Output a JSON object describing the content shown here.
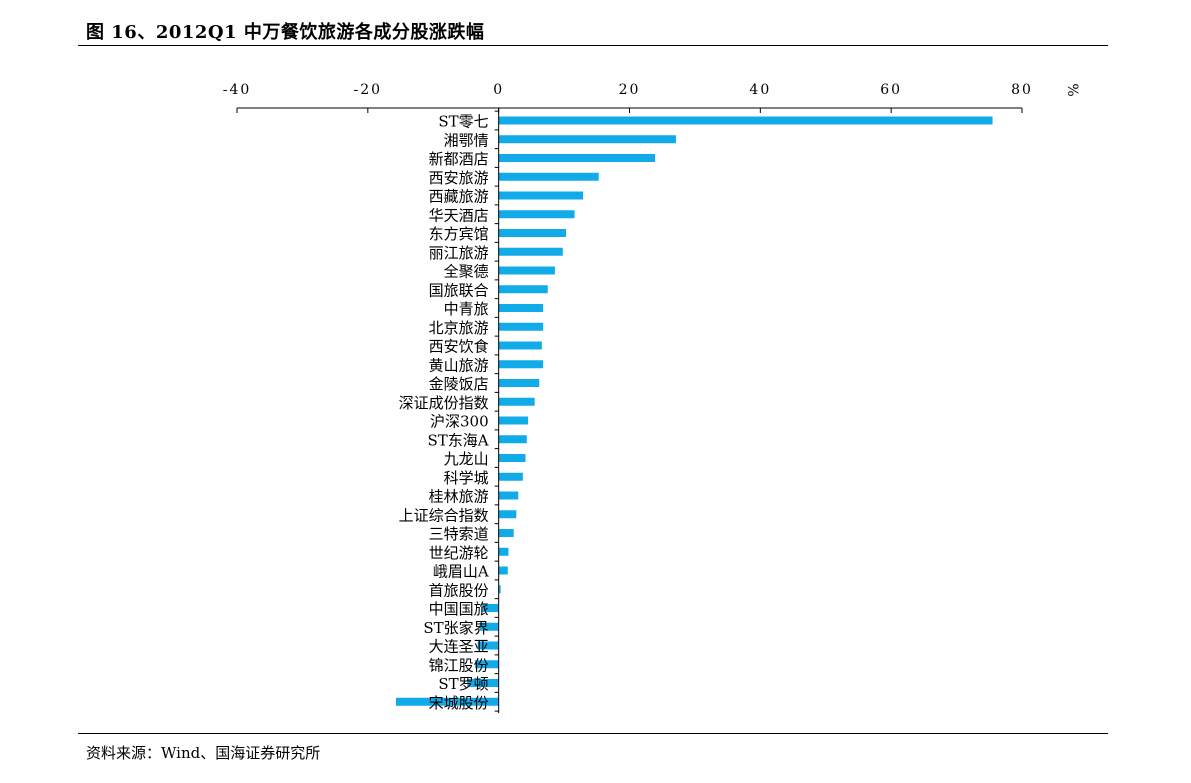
{
  "title": "图 16、2012Q1 中万餐饮旅游各成分股涨跌幅",
  "source": "资料来源：Wind、国海证券研究所",
  "chart_data": {
    "type": "bar",
    "orientation": "horizontal",
    "xaxis_position": "top",
    "unit": "%",
    "xlim": [
      -40,
      80
    ],
    "xticks": [
      "-40",
      "-20",
      "0",
      "20",
      "40",
      "60",
      "80"
    ],
    "bar_color": "#12ABE9",
    "categories": [
      "ST零七",
      "湘鄂情",
      "新都酒店",
      "西安旅游",
      "西藏旅游",
      "华天酒店",
      "东方宾馆",
      "丽江旅游",
      "全聚德",
      "国旅联合",
      "中青旅",
      "北京旅游",
      "西安饮食",
      "黄山旅游",
      "金陵饭店",
      "深证成份指数",
      "沪深300",
      "ST东海A",
      "九龙山",
      "科学城",
      "桂林旅游",
      "上证综合指数",
      "三特索道",
      "世纪游轮",
      "峨眉山A",
      "首旅股份",
      "中国国旅",
      "ST张家界",
      "大连圣亚",
      "锦江股份",
      "ST罗顿",
      "宋城股份"
    ],
    "values": [
      75.5,
      27.1,
      23.9,
      15.3,
      12.9,
      11.6,
      10.3,
      9.8,
      8.6,
      7.5,
      6.8,
      6.8,
      6.6,
      6.8,
      6.2,
      5.5,
      4.5,
      4.3,
      4.1,
      3.7,
      3.0,
      2.7,
      2.3,
      1.5,
      1.4,
      0.3,
      -2.5,
      -2.9,
      -3.2,
      -3.6,
      -4.8,
      -15.7
    ]
  }
}
